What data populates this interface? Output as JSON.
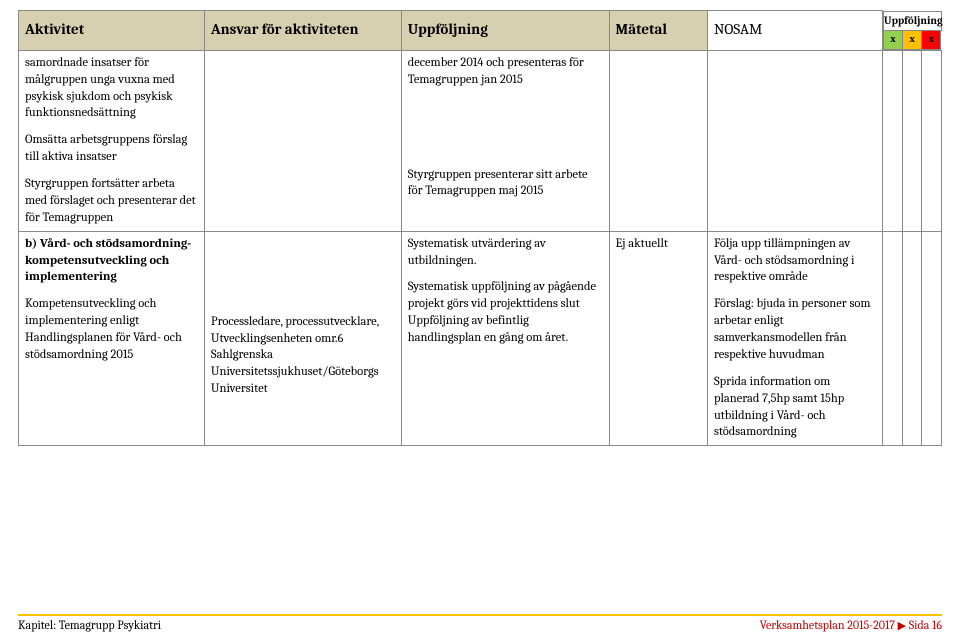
{
  "colors": {
    "header_bg": "#d6d0b0",
    "border": "#888888",
    "green": "#92d050",
    "yellow": "#ffc000",
    "red": "#ff0000",
    "footer_rule": "#ffc000",
    "footer_right": "#c00000"
  },
  "columns": {
    "c1": "Aktivitet",
    "c2": "Ansvar för aktiviteten",
    "c3": "Uppföljning",
    "c4": "Mätetal",
    "c5": "NOSAM",
    "upp_title": "Uppföljning",
    "light_x": "x"
  },
  "rows": [
    {
      "c1_p1": "samordnade insatser för målgruppen unga vuxna med psykisk sjukdom och psykisk funktionsnedsättning",
      "c1_p2": "Omsätta arbetsgruppens förslag till aktiva insatser",
      "c1_p3": "Styrgruppen fortsätter arbeta med förslaget och presenterar det för Temagruppen",
      "c2": "",
      "c3_p1": "december 2014 och presenteras för Temagruppen jan 2015",
      "c3_p2": "Styrgruppen presenterar sitt arbete för Temagruppen maj 2015",
      "c4": "",
      "c5": ""
    },
    {
      "c1_b": "b) Vård- och stödsamordning- kompetensutveckling och implementering",
      "c1_p2": "Kompetensutveckling och implementering enligt Handlingsplanen för Vård- och stödsamordning 2015",
      "c2": "Processledare, processutvecklare, Utvecklingsenheten omr.6 Sahlgrenska Universitetssjukhuset/Göteborgs Universitet",
      "c3_p1": "Systematisk utvärdering av utbildningen.",
      "c3_p2": "Systematisk uppföljning av pågående projekt görs vid projekttidens slut",
      "c3_p3": "Uppföljning av befintlig handlingsplan en gång om året.",
      "c4": "Ej aktuellt",
      "c5_p1": "Följa upp tillämpningen av Vård- och stödsamordning i respektive område",
      "c5_p2": "Förslag: bjuda in personer som arbetar enligt samverkansmodellen från respektive huvudman",
      "c5_p3": "Sprida information om planerad 7,5hp samt 15hp utbildning i Vård- och stödsamordning"
    }
  ],
  "footer": {
    "left_label": "Kapitel:",
    "left_value": "Temagrupp Psykiatri",
    "right_label": "Verksamhetsplan 2015-2017",
    "page_label": "Sida 16"
  },
  "col_widths": [
    "170px",
    "180px",
    "190px",
    "90px",
    "160px",
    "18px",
    "18px",
    "18px"
  ]
}
